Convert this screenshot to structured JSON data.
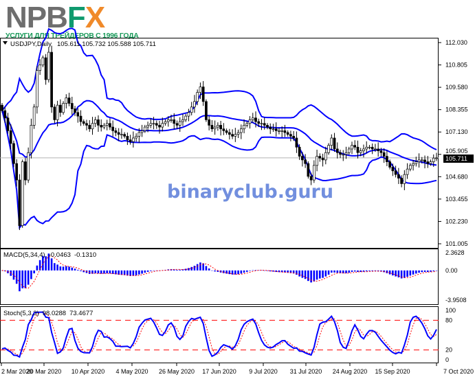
{
  "logo": {
    "n": "N",
    "p": "P",
    "b": "B",
    "f": "F",
    "x": "X",
    "tagline": "УСЛУГИ ДЛЯ ТРЕЙДЕРОВ С 1996 ГОДА",
    "colors": {
      "gray": "#6e6e6e",
      "green": "#0f9a6e",
      "orange": "#f08a2a"
    }
  },
  "watermark": "binaryclub.guru",
  "main": {
    "symbol_label": "USDJPY,Daily",
    "ohlc_label": "105.611 105.732 105.588 105.711",
    "current_price": "105.711"
  },
  "macd": {
    "label": "MACD(5,34,4)",
    "value1": "-0.0463",
    "value2": "-0.1310"
  },
  "stoch": {
    "label": "Stoch(5,3,3)",
    "value1": "98.0288",
    "value2": "73.4677"
  },
  "chart_data": {
    "type": "candlestick",
    "symbol": "USDJPY",
    "timeframe": "Daily",
    "price_axis_ticks": [
      "112.030",
      "110.805",
      "109.580",
      "108.355",
      "107.130",
      "105.905",
      "104.680",
      "103.455",
      "102.230",
      "101.005"
    ],
    "ylim": [
      101.005,
      112.03
    ],
    "x_tick_labels": [
      "2 Mar 2020",
      "20 Mar 2020",
      "10 Apr 2020",
      "4 May 2020",
      "26 May 2020",
      "17 Jun 2020",
      "9 Jul 2020",
      "31 Jul 2020",
      "24 Aug 2020",
      "15 Sep 2020",
      "7 Oct 2020"
    ],
    "bollinger": {
      "period": 20,
      "deviations": 2,
      "color": "#0000ff"
    },
    "macd_axis_ticks": [
      "2.3628",
      "0.00",
      "-3.9508"
    ],
    "macd_ylim": [
      -3.9508,
      2.3628
    ],
    "macd_params": [
      5,
      34,
      4
    ],
    "stoch_axis_ticks": [
      "100",
      "80",
      "20",
      "0"
    ],
    "stoch_levels": [
      80,
      20
    ],
    "stoch_params": [
      5,
      3,
      3
    ],
    "colors": {
      "bands": "#0000ff",
      "macd_hist": "#0000ff",
      "signal": "#ff0000",
      "stoch_main": "#0000ff",
      "stoch_signal": "#ff0000",
      "levels": "#ff0000"
    },
    "closes": [
      108.3,
      107.9,
      107.2,
      106.5,
      105.4,
      104.5,
      102.0,
      105.5,
      104.5,
      106.0,
      107.5,
      108.5,
      110.5,
      110.8,
      111.2,
      110.0,
      111.5,
      108.5,
      107.8,
      108.6,
      108.2,
      108.7,
      109.0,
      108.7,
      108.4,
      108.2,
      108.0,
      107.7,
      107.6,
      107.5,
      107.3,
      107.6,
      107.8,
      107.5,
      107.4,
      107.5,
      107.6,
      107.4,
      107.2,
      107.1,
      107.0,
      107.0,
      106.9,
      106.7,
      106.6,
      106.8,
      106.9,
      107.1,
      107.2,
      107.4,
      107.5,
      107.6,
      107.6,
      107.5,
      107.4,
      107.6,
      107.7,
      107.8,
      107.8,
      107.6,
      107.5,
      107.7,
      107.8,
      108.0,
      108.2,
      108.5,
      108.8,
      109.3,
      109.6,
      108.8,
      107.8,
      107.5,
      107.3,
      107.4,
      107.5,
      107.3,
      107.2,
      107.1,
      107.0,
      106.9,
      107.0,
      107.1,
      107.3,
      107.5,
      107.6,
      107.8,
      107.9,
      107.7,
      107.6,
      107.6,
      107.5,
      107.4,
      107.3,
      107.3,
      107.2,
      107.2,
      107.2,
      107.1,
      107.0,
      106.9,
      106.8,
      106.3,
      105.8,
      105.6,
      105.4,
      104.7,
      104.5,
      105.3,
      105.8,
      105.7,
      105.6,
      106.0,
      106.4,
      106.8,
      106.2,
      106.0,
      105.9,
      105.9,
      106.0,
      106.2,
      106.4,
      106.3,
      106.0,
      106.1,
      106.2,
      106.3,
      106.3,
      106.2,
      106.2,
      106.1,
      106.0,
      105.8,
      105.5,
      105.2,
      105.0,
      104.8,
      104.6,
      104.3,
      104.8,
      105.1,
      105.3,
      105.4,
      105.5,
      105.6,
      105.6,
      105.5,
      105.4,
      105.5,
      105.7,
      105.711
    ]
  }
}
